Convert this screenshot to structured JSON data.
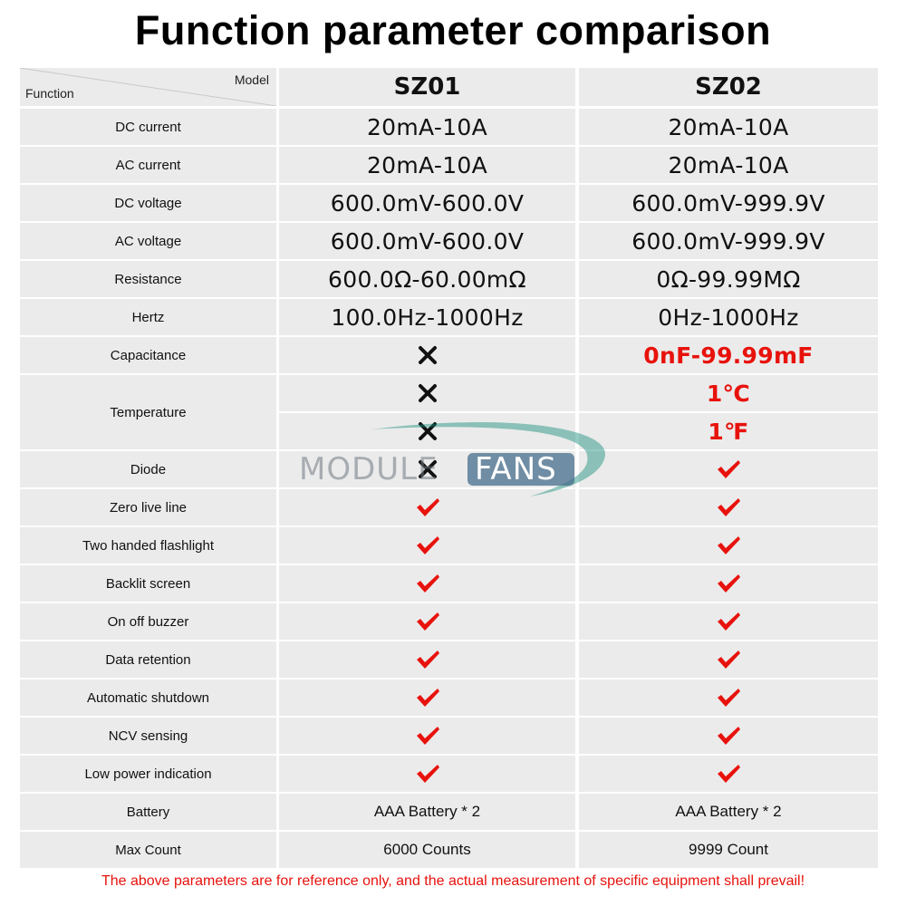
{
  "title": "Function parameter comparison",
  "header": {
    "model_label": "Model",
    "function_label": "Function",
    "col1": "SZ01",
    "col2": "SZ02"
  },
  "rows": [
    {
      "label": "DC current",
      "sz01": "20mA-10A",
      "sz02": "20mA-10A"
    },
    {
      "label": "AC current",
      "sz01": "20mA-10A",
      "sz02": "20mA-10A"
    },
    {
      "label": "DC voltage",
      "sz01": "600.0mV-600.0V",
      "sz02": "600.0mV-999.9V"
    },
    {
      "label": "AC voltage",
      "sz01": "600.0mV-600.0V",
      "sz02": "600.0mV-999.9V"
    },
    {
      "label": "Resistance",
      "sz01": "600.0Ω-60.00mΩ",
      "sz02": "0Ω-99.99MΩ"
    },
    {
      "label": "Hertz",
      "sz01": "100.0Hz-1000Hz",
      "sz02": "0Hz-1000Hz"
    },
    {
      "label": "Capacitance",
      "sz01": "cross",
      "sz02": "0nF-99.99mF"
    },
    {
      "label": "Temperature",
      "sz01": "cross",
      "sz02": "1℃",
      "sz01_b": "cross",
      "sz02_b": "1℉"
    },
    {
      "label": "Diode",
      "sz01": "cross",
      "sz02": "check"
    },
    {
      "label": "Zero live line",
      "sz01": "check",
      "sz02": "check"
    },
    {
      "label": "Two handed flashlight",
      "sz01": "check",
      "sz02": "check"
    },
    {
      "label": "Backlit screen",
      "sz01": "check",
      "sz02": "check"
    },
    {
      "label": "On off buzzer",
      "sz01": "check",
      "sz02": "check"
    },
    {
      "label": "Data retention",
      "sz01": "check",
      "sz02": "check"
    },
    {
      "label": "Automatic shutdown",
      "sz01": "check",
      "sz02": "check"
    },
    {
      "label": "NCV sensing",
      "sz01": "check",
      "sz02": "check"
    },
    {
      "label": "Low power indication",
      "sz01": "check",
      "sz02": "check"
    },
    {
      "label": "Battery",
      "sz01": "AAA Battery * 2",
      "sz02": "AAA Battery * 2"
    },
    {
      "label": "Max Count",
      "sz01": "6000 Counts",
      "sz02": "9999 Count"
    }
  ],
  "note": "The above parameters are for reference only, and the actual measurement of specific equipment shall prevail!",
  "watermark": {
    "part1": "MODULE",
    "part2": "FANS"
  },
  "colors": {
    "accent_red": "#e8120c",
    "cell_bg": "#ebebeb"
  }
}
